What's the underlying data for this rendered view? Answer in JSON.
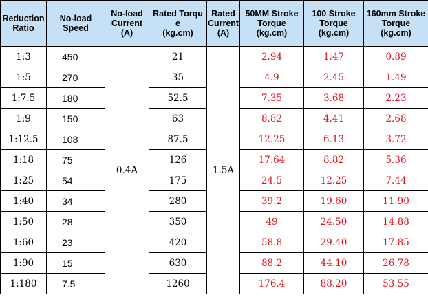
{
  "table": {
    "headers": [
      "Reduction\nRatio",
      "No-load\nSpeed",
      "No-load\nCurrent\n(A)",
      "Rated Torqu\ne\n(kg.cm)",
      "Rated\nCurrent\n(A)",
      "50MM Stroke\nTorque\n(kg.cm)",
      "100 Stroke\nTorque\n(kg.cm)",
      "160mm Stroke\nTorque\n(kg.cm)"
    ],
    "no_load_current": "0.4A",
    "rated_current": "1.5A",
    "rows": [
      {
        "ratio": "1:3",
        "speed": "450",
        "torque": "21",
        "t50": "2.94",
        "t100": "1.47",
        "t160": "0.89"
      },
      {
        "ratio": "1:5",
        "speed": "270",
        "torque": "35",
        "t50": "4.9",
        "t100": "2.45",
        "t160": "1.49"
      },
      {
        "ratio": "1:7.5",
        "speed": "180",
        "torque": "52.5",
        "t50": "7.35",
        "t100": "3.68",
        "t160": "2.23"
      },
      {
        "ratio": "1:9",
        "speed": "150",
        "torque": "63",
        "t50": "8.82",
        "t100": "4.41",
        "t160": "2.68"
      },
      {
        "ratio": "1:12.5",
        "speed": "108",
        "torque": "87.5",
        "t50": "12.25",
        "t100": "6.13",
        "t160": "3.72"
      },
      {
        "ratio": "1:18",
        "speed": "75",
        "torque": "126",
        "t50": "17.64",
        "t100": "8.82",
        "t160": "5.36"
      },
      {
        "ratio": "1:25",
        "speed": "54",
        "torque": "175",
        "t50": "24.5",
        "t100": "12.25",
        "t160": "7.44"
      },
      {
        "ratio": "1:40",
        "speed": "34",
        "torque": "280",
        "t50": "39.2",
        "t100": "19.60",
        "t160": "11.90"
      },
      {
        "ratio": "1:50",
        "speed": "28",
        "torque": "350",
        "t50": "49",
        "t100": "24.50",
        "t160": "14.88"
      },
      {
        "ratio": "1:60",
        "speed": "23",
        "torque": "420",
        "t50": "58.8",
        "t100": "29.40",
        "t160": "17.85"
      },
      {
        "ratio": "1:90",
        "speed": "15",
        "torque": "630",
        "t50": "88.2",
        "t100": "44.10",
        "t160": "26.78"
      },
      {
        "ratio": "1:180",
        "speed": "7.5",
        "torque": "1260",
        "t50": "176.4",
        "t100": "88.20",
        "t160": "53.55"
      }
    ]
  },
  "colors": {
    "header_bg": "#c6e0f5",
    "stroke_torque_text": "#e0141e",
    "border": "#000000"
  }
}
